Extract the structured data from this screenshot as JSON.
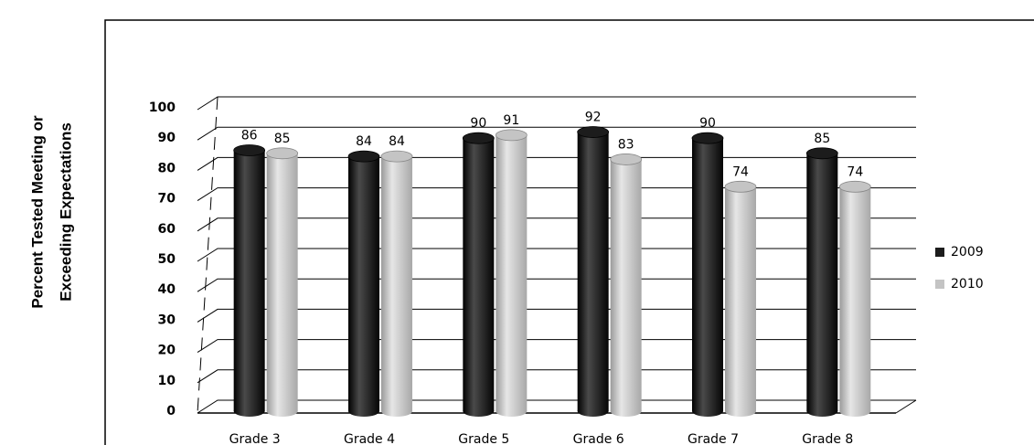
{
  "chart_data": {
    "type": "bar",
    "y_label": [
      "Percent Tested Meeting or",
      "Exceeding Expectations"
    ],
    "categories": [
      "Grade 3",
      "Grade 4",
      "Grade 5",
      "Grade 6",
      "Grade 7",
      "Grade 8"
    ],
    "series": [
      {
        "name": "2009",
        "color": "#1c1c1c",
        "values": [
          86,
          84,
          90,
          92,
          90,
          85
        ]
      },
      {
        "name": "2010",
        "color": "#c4c4c4",
        "values": [
          85,
          84,
          91,
          83,
          74,
          74
        ]
      }
    ],
    "ylim": [
      0,
      100
    ],
    "yticks": [
      0,
      10,
      20,
      30,
      40,
      50,
      60,
      70,
      80,
      90,
      100
    ],
    "grid": true,
    "legend": "right"
  }
}
